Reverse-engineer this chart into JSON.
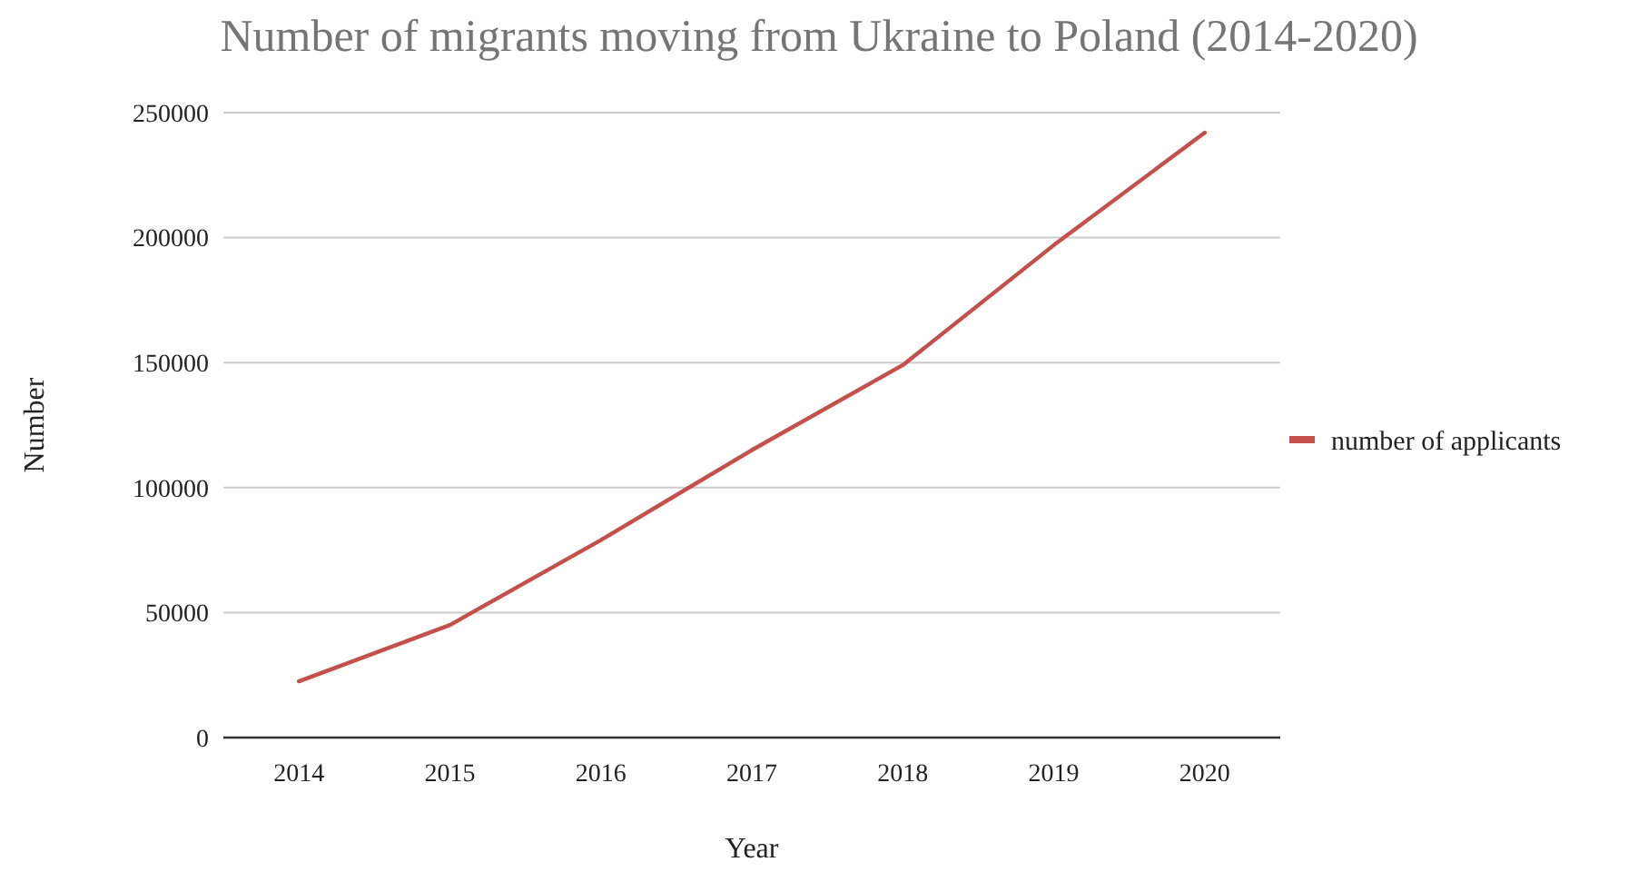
{
  "chart_data": {
    "type": "line",
    "title": "Number of migrants moving from Ukraine to Poland (2014-2020)",
    "xlabel": "Year",
    "ylabel": "Number",
    "categories": [
      "2014",
      "2015",
      "2016",
      "2017",
      "2018",
      "2019",
      "2020"
    ],
    "series": [
      {
        "name": "number of applicants",
        "color": "#c5504b",
        "values": [
          22500,
          45000,
          79000,
          115000,
          149000,
          197000,
          242000
        ]
      }
    ],
    "ylim": [
      0,
      250000
    ],
    "yticks": [
      0,
      50000,
      100000,
      150000,
      200000,
      250000
    ],
    "grid": "y",
    "legend": "right",
    "marker": "none",
    "line_style": "solid"
  }
}
